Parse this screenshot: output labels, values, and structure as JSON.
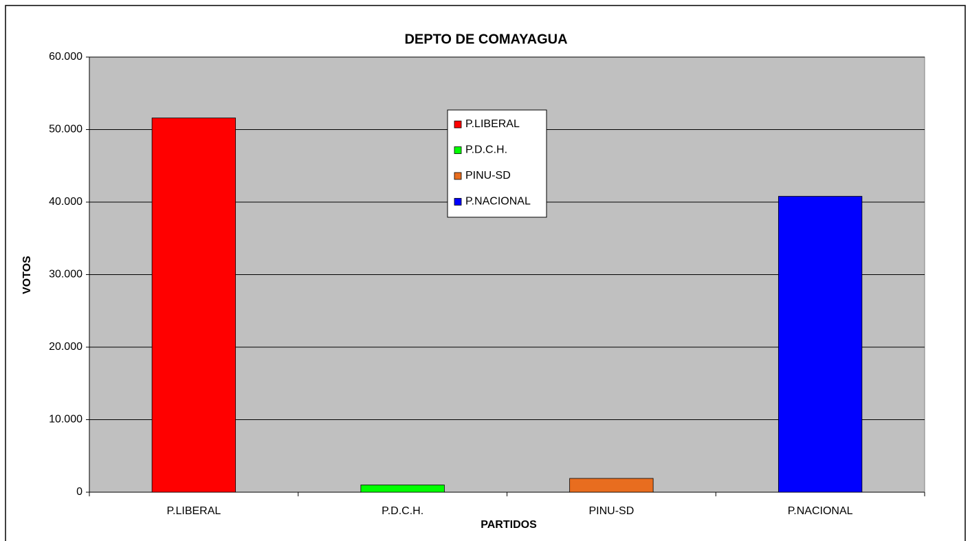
{
  "chart_data": {
    "type": "bar",
    "title": "DEPTO DE COMAYAGUA",
    "x_label": "PARTIDOS",
    "y_label": "VOTOS",
    "categories": [
      "P.LIBERAL",
      "P.D.C.H.",
      "PINU-SD",
      "P.NACIONAL"
    ],
    "values": [
      51600,
      1000,
      1900,
      40800
    ],
    "colors": [
      "#ff0000",
      "#00ff00",
      "#e86d1f",
      "#0000ff"
    ],
    "ylim": [
      0,
      60000
    ],
    "yticks": [
      0,
      {
        "value": 10000,
        "label": "10.000"
      },
      {
        "value": 20000,
        "label": "20.000"
      },
      {
        "value": 30000,
        "label": "30.000"
      },
      {
        "value": 40000,
        "label": "40.000"
      },
      {
        "value": 50000,
        "label": "50.000"
      },
      {
        "value": 60000,
        "label": "60.000"
      }
    ],
    "grid": true,
    "legend": "center"
  }
}
